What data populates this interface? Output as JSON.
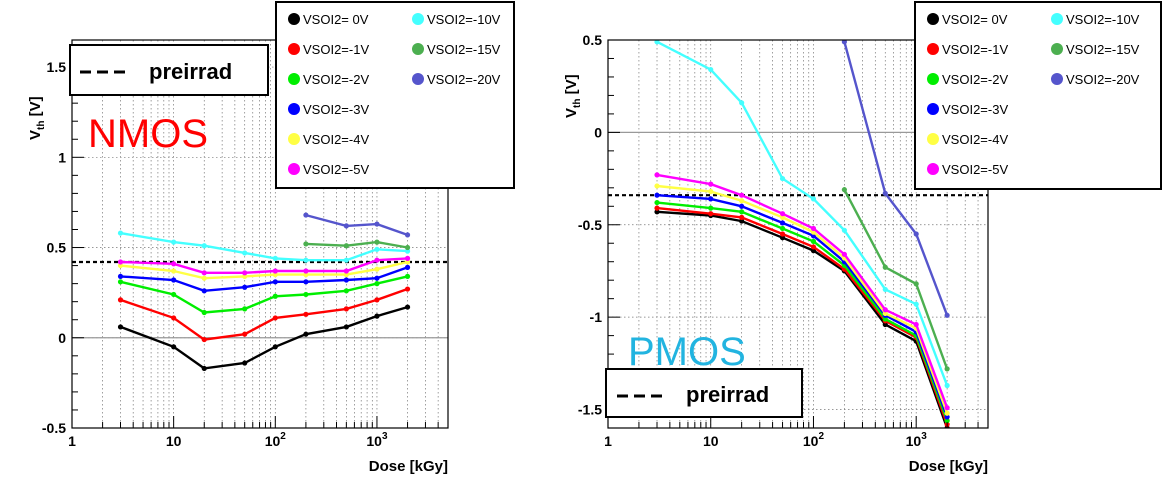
{
  "colors": {
    "VSOI2= 0V": "#000000",
    "VSOI2=-1V": "#ff0000",
    "VSOI2=-2V": "#00ee00",
    "VSOI2=-3V": "#0000ff",
    "VSOI2=-4V": "#ffff44",
    "VSOI2=-5V": "#ff00ff",
    "VSOI2=-10V": "#44ffff",
    "VSOI2=-15V": "#4caf50",
    "VSOI2=-20V": "#5555cc"
  },
  "legend_order": [
    "VSOI2= 0V",
    "VSOI2=-10V",
    "VSOI2=-1V",
    "VSOI2=-15V",
    "VSOI2=-2V",
    "VSOI2=-20V",
    "VSOI2=-3V",
    "VSOI2=-4V",
    "VSOI2=-5V"
  ],
  "chart_data": [
    {
      "type": "line",
      "device_label": "NMOS",
      "device_color": "#ff0000",
      "xlabel": "Dose [kGy]",
      "ylabel": "V",
      "ylabel_sub": "th",
      "ylabel_unit": " [V]",
      "xscale": "log",
      "xlim": [
        1,
        5000
      ],
      "ylim": [
        -0.5,
        1.65
      ],
      "x_ticks": [
        {
          "v": 1,
          "t": "1"
        },
        {
          "v": 10,
          "t": "10"
        },
        {
          "v": 100,
          "t": "10",
          "sup": "2"
        },
        {
          "v": 1000,
          "t": "10",
          "sup": "3"
        }
      ],
      "y_ticks": [
        {
          "v": -0.5,
          "t": "-0.5"
        },
        {
          "v": 0,
          "t": "0"
        },
        {
          "v": 0.5,
          "t": "0.5"
        },
        {
          "v": 1,
          "t": "1"
        },
        {
          "v": 1.5,
          "t": "1.5"
        }
      ],
      "reference_line": {
        "label": "preirrad",
        "y": 0.42
      },
      "series": [
        {
          "name": "VSOI2= 0V",
          "x": [
            3,
            10,
            20,
            50,
            100,
            200,
            500,
            1000,
            2000
          ],
          "y": [
            0.06,
            -0.05,
            -0.17,
            -0.14,
            -0.05,
            0.02,
            0.06,
            0.12,
            0.17
          ]
        },
        {
          "name": "VSOI2=-1V",
          "x": [
            3,
            10,
            20,
            50,
            100,
            200,
            500,
            1000,
            2000
          ],
          "y": [
            0.21,
            0.11,
            -0.01,
            0.02,
            0.11,
            0.13,
            0.16,
            0.21,
            0.27
          ]
        },
        {
          "name": "VSOI2=-2V",
          "x": [
            3,
            10,
            20,
            50,
            100,
            200,
            500,
            1000,
            2000
          ],
          "y": [
            0.31,
            0.24,
            0.14,
            0.16,
            0.23,
            0.24,
            0.26,
            0.3,
            0.34
          ]
        },
        {
          "name": "VSOI2=-3V",
          "x": [
            3,
            10,
            20,
            50,
            100,
            200,
            500,
            1000,
            2000
          ],
          "y": [
            0.34,
            0.32,
            0.26,
            0.28,
            0.31,
            0.31,
            0.32,
            0.33,
            0.39
          ]
        },
        {
          "name": "VSOI2=-4V",
          "x": [
            3,
            10,
            20,
            50,
            100,
            200,
            500,
            1000,
            2000
          ],
          "y": [
            0.4,
            0.37,
            0.33,
            0.34,
            0.35,
            0.35,
            0.35,
            0.38,
            0.42
          ]
        },
        {
          "name": "VSOI2=-5V",
          "x": [
            3,
            10,
            20,
            50,
            100,
            200,
            500,
            1000,
            2000
          ],
          "y": [
            0.42,
            0.41,
            0.36,
            0.36,
            0.37,
            0.37,
            0.37,
            0.43,
            0.44
          ]
        },
        {
          "name": "VSOI2=-10V",
          "x": [
            3,
            10,
            20,
            50,
            100,
            200,
            500,
            1000,
            2000
          ],
          "y": [
            0.58,
            0.53,
            0.51,
            0.47,
            0.44,
            0.43,
            0.43,
            0.49,
            0.48
          ]
        },
        {
          "name": "VSOI2=-15V",
          "x": [
            200,
            500,
            1000,
            2000
          ],
          "y": [
            0.52,
            0.51,
            0.53,
            0.5
          ]
        },
        {
          "name": "VSOI2=-20V",
          "x": [
            200,
            500,
            1000,
            2000
          ],
          "y": [
            0.68,
            0.62,
            0.63,
            0.57
          ]
        }
      ]
    },
    {
      "type": "line",
      "device_label": "PMOS",
      "device_color": "#22b4e0",
      "xlabel": "Dose [kGy]",
      "ylabel": "V",
      "ylabel_sub": "th",
      "ylabel_unit": " [V]",
      "xscale": "log",
      "xlim": [
        1,
        5000
      ],
      "ylim": [
        -1.6,
        0.5
      ],
      "x_ticks": [
        {
          "v": 1,
          "t": "1"
        },
        {
          "v": 10,
          "t": "10"
        },
        {
          "v": 100,
          "t": "10",
          "sup": "2"
        },
        {
          "v": 1000,
          "t": "10",
          "sup": "3"
        }
      ],
      "y_ticks": [
        {
          "v": -1.5,
          "t": "-1.5"
        },
        {
          "v": -1,
          "t": "-1"
        },
        {
          "v": -0.5,
          "t": "-0.5"
        },
        {
          "v": 0,
          "t": "0"
        },
        {
          "v": 0.5,
          "t": "0.5"
        }
      ],
      "reference_line": {
        "label": "preirrad",
        "y": -0.34
      },
      "series": [
        {
          "name": "VSOI2= 0V",
          "x": [
            3,
            10,
            20,
            50,
            100,
            200,
            500,
            1000,
            2000
          ],
          "y": [
            -0.43,
            -0.45,
            -0.48,
            -0.57,
            -0.64,
            -0.75,
            -1.04,
            -1.13,
            -1.6
          ]
        },
        {
          "name": "VSOI2=-1V",
          "x": [
            3,
            10,
            20,
            50,
            100,
            200,
            500,
            1000,
            2000
          ],
          "y": [
            -0.41,
            -0.44,
            -0.46,
            -0.55,
            -0.62,
            -0.74,
            -1.02,
            -1.11,
            -1.58
          ]
        },
        {
          "name": "VSOI2=-2V",
          "x": [
            3,
            10,
            20,
            50,
            100,
            200,
            500,
            1000,
            2000
          ],
          "y": [
            -0.38,
            -0.41,
            -0.43,
            -0.52,
            -0.59,
            -0.72,
            -1.01,
            -1.1,
            -1.56
          ]
        },
        {
          "name": "VSOI2=-3V",
          "x": [
            3,
            10,
            20,
            50,
            100,
            200,
            500,
            1000,
            2000
          ],
          "y": [
            -0.34,
            -0.36,
            -0.4,
            -0.49,
            -0.56,
            -0.7,
            -0.99,
            -1.08,
            -1.54
          ]
        },
        {
          "name": "VSOI2=-4V",
          "x": [
            3,
            10,
            20,
            50,
            100,
            200,
            500,
            1000,
            2000
          ],
          "y": [
            -0.29,
            -0.32,
            -0.37,
            -0.46,
            -0.54,
            -0.68,
            -0.98,
            -1.06,
            -1.52
          ]
        },
        {
          "name": "VSOI2=-5V",
          "x": [
            3,
            10,
            20,
            50,
            100,
            200,
            500,
            1000,
            2000
          ],
          "y": [
            -0.23,
            -0.28,
            -0.34,
            -0.44,
            -0.52,
            -0.66,
            -0.96,
            -1.04,
            -1.49
          ]
        },
        {
          "name": "VSOI2=-10V",
          "x": [
            3,
            10,
            20,
            50,
            100,
            200,
            500,
            1000,
            2000
          ],
          "y": [
            0.49,
            0.34,
            0.16,
            -0.25,
            -0.36,
            -0.53,
            -0.85,
            -0.93,
            -1.37
          ]
        },
        {
          "name": "VSOI2=-15V",
          "x": [
            200,
            500,
            1000,
            2000
          ],
          "y": [
            -0.31,
            -0.73,
            -0.82,
            -1.28
          ]
        },
        {
          "name": "VSOI2=-20V",
          "x": [
            200,
            500,
            1000,
            2000
          ],
          "y": [
            0.49,
            -0.33,
            -0.55,
            -0.99
          ]
        }
      ]
    }
  ]
}
